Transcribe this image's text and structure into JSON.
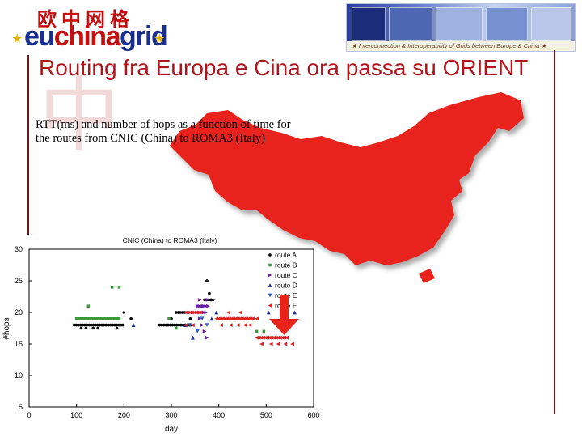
{
  "logo": {
    "chinese_text": "欧中网格",
    "wordmark_eu": "eu",
    "wordmark_china": "china",
    "wordmark_grid": "grid",
    "star": "★"
  },
  "banner": {
    "caption": "★ Interconnection & Interoperability of Grids between Europe & China ★"
  },
  "watermark": "中",
  "slide": {
    "title": "Routing fra Europa e Cina ora passa su ORIENT",
    "subtitle": "RTT(ms) and number of hops as a function of time for the routes from CNIC (China) to ROMA3 (Italy)"
  },
  "colors": {
    "title": "#b0141c",
    "map_fill": "#e8231a",
    "arrow": "#e8231a",
    "divider": "#7a1515"
  },
  "chart_data": {
    "type": "scatter",
    "title": "CNIC (China) to ROMA3 (Italy)",
    "xlabel": "day",
    "ylabel": "#hops",
    "xlim": [
      0,
      600
    ],
    "ylim": [
      5,
      30
    ],
    "xticks": [
      0,
      100,
      200,
      300,
      400,
      500,
      600
    ],
    "yticks": [
      5,
      10,
      15,
      20,
      25,
      30
    ],
    "legend_position": "top-right",
    "series": [
      {
        "name": "route A",
        "color": "#000000",
        "marker": "circle",
        "segments": [
          [
            95,
            200,
            18
          ],
          [
            275,
            345,
            18
          ],
          [
            370,
            390,
            22
          ],
          [
            310,
            330,
            20
          ]
        ],
        "points": [
          [
            120,
            17.5
          ],
          [
            145,
            17.5
          ],
          [
            200,
            20
          ],
          [
            215,
            19
          ],
          [
            375,
            25
          ],
          [
            380,
            23
          ],
          [
            365,
            21
          ],
          [
            300,
            19
          ],
          [
            110,
            17.5
          ],
          [
            135,
            17.5
          ],
          [
            185,
            17.5
          ],
          [
            340,
            19
          ]
        ]
      },
      {
        "name": "route B",
        "color": "#3a9a3a",
        "marker": "square",
        "segments": [
          [
            100,
            190,
            19
          ]
        ],
        "points": [
          [
            125,
            21
          ],
          [
            175,
            24
          ],
          [
            190,
            24
          ],
          [
            295,
            19
          ],
          [
            310,
            17.5
          ],
          [
            480,
            17
          ],
          [
            495,
            17
          ],
          [
            115,
            19
          ],
          [
            160,
            19
          ]
        ]
      },
      {
        "name": "route C",
        "color": "#6a1e9c",
        "marker": "triangle-right",
        "segments": [
          [
            355,
            375,
            20
          ],
          [
            355,
            380,
            21
          ]
        ],
        "points": [
          [
            360,
            19
          ],
          [
            365,
            18
          ],
          [
            370,
            17
          ],
          [
            375,
            16
          ],
          [
            360,
            22
          ],
          [
            375,
            22
          ]
        ]
      },
      {
        "name": "route D",
        "color": "#1b2f8f",
        "marker": "triangle-up",
        "segments": [],
        "points": [
          [
            220,
            18
          ],
          [
            330,
            18
          ],
          [
            345,
            16
          ],
          [
            385,
            19
          ],
          [
            395,
            20
          ],
          [
            505,
            20
          ],
          [
            560,
            20
          ]
        ]
      },
      {
        "name": "route E",
        "color": "#2a5fd1",
        "marker": "triangle-down",
        "segments": [],
        "points": [
          [
            340,
            18
          ],
          [
            355,
            17
          ],
          [
            365,
            19
          ],
          [
            375,
            18
          ]
        ]
      },
      {
        "name": "route F",
        "color": "#e02020",
        "marker": "triangle-left",
        "segments": [
          [
            330,
            365,
            20
          ],
          [
            395,
            475,
            19
          ],
          [
            480,
            545,
            16
          ]
        ],
        "points": [
          [
            330,
            18
          ],
          [
            345,
            18
          ],
          [
            405,
            18
          ],
          [
            425,
            18
          ],
          [
            440,
            18
          ],
          [
            455,
            18
          ],
          [
            465,
            18
          ],
          [
            490,
            15
          ],
          [
            510,
            15
          ],
          [
            525,
            15
          ],
          [
            540,
            15
          ],
          [
            555,
            15
          ],
          [
            420,
            20
          ],
          [
            445,
            20
          ],
          [
            480,
            19
          ]
        ]
      }
    ]
  }
}
